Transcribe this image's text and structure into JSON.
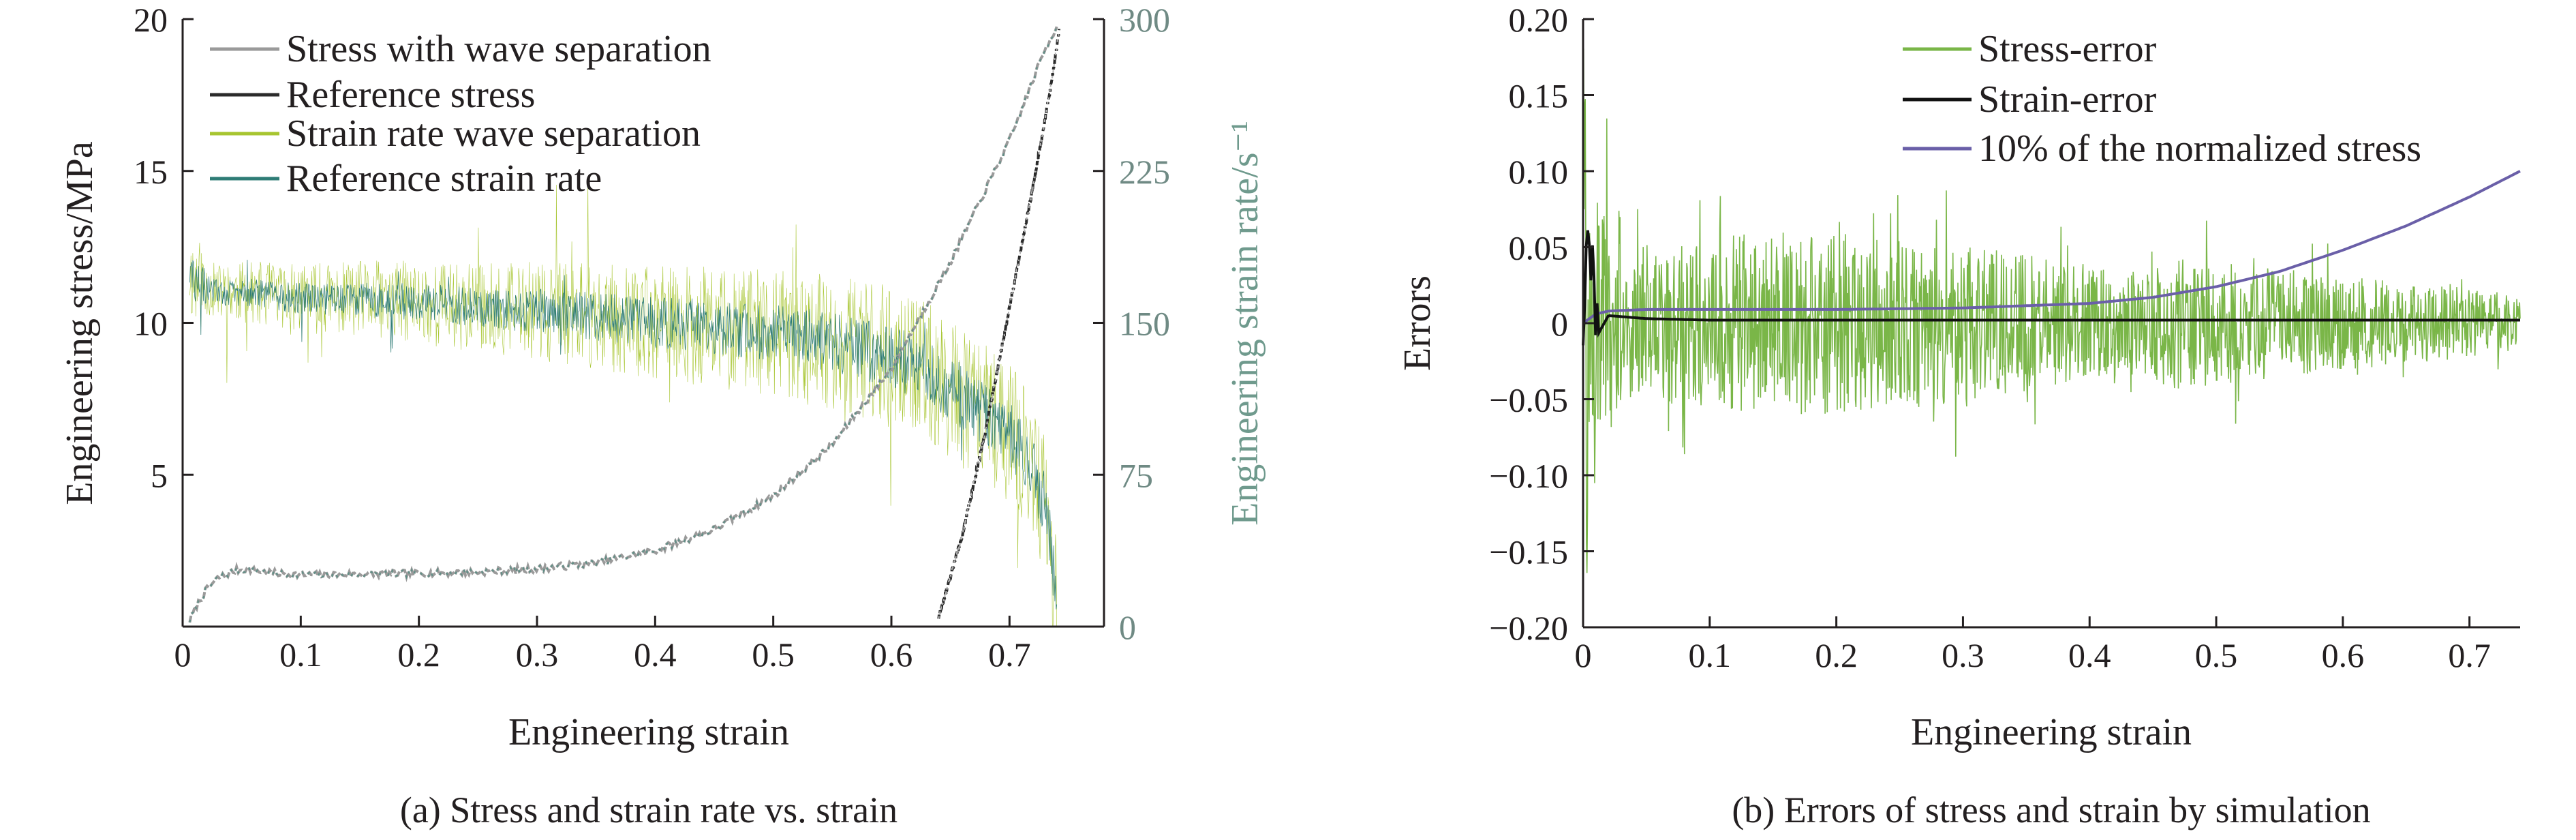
{
  "colors": {
    "green": "#7ab648",
    "yellow_green": "#a7c530",
    "teal": "#2e7c76",
    "dark": "#2b2b2b",
    "grey": "#9a9a9a",
    "purple": "#6a5fa8",
    "black": "#111111"
  },
  "chart_data": [
    {
      "type": "line",
      "caption": "(a) Stress and strain rate vs. strain",
      "xlabel": "Engineering strain",
      "ylabel": "Engineering stress/MPa",
      "ylabel_right": "Engineering strain rate/s⁻¹",
      "xlim": [
        0,
        0.78
      ],
      "ylim": [
        0,
        20
      ],
      "ylim_right": [
        0,
        300
      ],
      "x_ticks": [
        {
          "v": 0,
          "label": "0"
        },
        {
          "v": 0.1,
          "label": "0.1"
        },
        {
          "v": 0.2,
          "label": "0.2"
        },
        {
          "v": 0.3,
          "label": "0.3"
        },
        {
          "v": 0.4,
          "label": "0.4"
        },
        {
          "v": 0.5,
          "label": "0.5"
        },
        {
          "v": 0.6,
          "label": "0.6"
        },
        {
          "v": 0.7,
          "label": "0.7"
        }
      ],
      "y_ticks": [
        {
          "v": 5,
          "label": "5"
        },
        {
          "v": 10,
          "label": "10"
        },
        {
          "v": 15,
          "label": "15"
        },
        {
          "v": 20,
          "label": "20"
        }
      ],
      "y_ticks_right": [
        {
          "v": 0,
          "label": "0"
        },
        {
          "v": 75,
          "label": "75"
        },
        {
          "v": 150,
          "label": "150"
        },
        {
          "v": 225,
          "label": "225"
        },
        {
          "v": 300,
          "label": "300"
        }
      ],
      "grid": false,
      "legend": "top-left",
      "series": [
        {
          "name": "Stress with wave separation",
          "axis": "left",
          "color": "#9a9a9a",
          "x": [
            0.006,
            0.012,
            0.02,
            0.03,
            0.045,
            0.055,
            0.06,
            0.08,
            0.1,
            0.15,
            0.2,
            0.25,
            0.3,
            0.35,
            0.4,
            0.45,
            0.5,
            0.55,
            0.6,
            0.65,
            0.7,
            0.73,
            0.738,
            0.74
          ],
          "y": [
            0.2,
            0.7,
            1.2,
            1.6,
            1.85,
            1.9,
            1.85,
            1.75,
            1.7,
            1.72,
            1.75,
            1.8,
            1.9,
            2.1,
            2.5,
            3.2,
            4.3,
            6.0,
            8.5,
            12.0,
            16.0,
            19.0,
            19.6,
            19.8
          ]
        },
        {
          "name": "Reference stress",
          "axis": "left",
          "color": "#2b2b2b",
          "x": [
            0.64,
            0.66,
            0.68,
            0.7,
            0.72,
            0.735,
            0.742
          ],
          "y": [
            0.3,
            3.0,
            6.5,
            10.5,
            14.5,
            17.8,
            19.6
          ]
        },
        {
          "name": "Strain rate wave separation",
          "axis": "right",
          "color": "#a7c530",
          "x": [
            0.006,
            0.01,
            0.03,
            0.06,
            0.1,
            0.15,
            0.2,
            0.25,
            0.3,
            0.35,
            0.4,
            0.45,
            0.5,
            0.55,
            0.6,
            0.62,
            0.65,
            0.68,
            0.7,
            0.72,
            0.73,
            0.735,
            0.74
          ],
          "y": [
            175,
            170,
            165,
            165,
            162,
            162,
            160,
            158,
            156,
            153,
            150,
            148,
            145,
            140,
            133,
            128,
            118,
            105,
            95,
            78,
            60,
            40,
            8
          ]
        },
        {
          "name": "Reference strain rate",
          "axis": "right",
          "color": "#2e7c76",
          "x": [
            0.006,
            0.01,
            0.03,
            0.06,
            0.1,
            0.15,
            0.2,
            0.25,
            0.3,
            0.35,
            0.4,
            0.45,
            0.5,
            0.55,
            0.6,
            0.62,
            0.65,
            0.68,
            0.7,
            0.72,
            0.73,
            0.735,
            0.74
          ],
          "y": [
            175,
            170,
            165,
            165,
            162,
            162,
            160,
            158,
            156,
            153,
            150,
            148,
            145,
            140,
            133,
            128,
            118,
            105,
            95,
            78,
            60,
            40,
            8
          ]
        }
      ]
    },
    {
      "type": "line",
      "caption": "(b) Errors of stress and strain by simulation",
      "xlabel": "Engineering strain",
      "ylabel": "Errors",
      "xlim": [
        0,
        0.74
      ],
      "ylim": [
        -0.2,
        0.2
      ],
      "x_ticks": [
        {
          "v": 0,
          "label": "0"
        },
        {
          "v": 0.1,
          "label": "0.1"
        },
        {
          "v": 0.2,
          "label": "0.2"
        },
        {
          "v": 0.3,
          "label": "0.3"
        },
        {
          "v": 0.4,
          "label": "0.4"
        },
        {
          "v": 0.5,
          "label": "0.5"
        },
        {
          "v": 0.6,
          "label": "0.6"
        },
        {
          "v": 0.7,
          "label": "0.7"
        }
      ],
      "y_ticks": [
        {
          "v": -0.2,
          "label": "−0.20"
        },
        {
          "v": -0.15,
          "label": "−0.15"
        },
        {
          "v": -0.1,
          "label": "−0.10"
        },
        {
          "v": -0.05,
          "label": "−0.05"
        },
        {
          "v": 0,
          "label": "0"
        },
        {
          "v": 0.05,
          "label": "0.05"
        },
        {
          "v": 0.1,
          "label": "0.10"
        },
        {
          "v": 0.15,
          "label": "0.15"
        },
        {
          "v": 0.2,
          "label": "0.20"
        }
      ],
      "grid": false,
      "legend": "top-right",
      "series": [
        {
          "name": "Stress-error",
          "color": "#7ab648",
          "x": [
            0.0,
            0.1,
            0.2,
            0.3,
            0.4,
            0.5,
            0.6,
            0.7,
            0.74
          ],
          "y": [
            0.0,
            0.0,
            0.0,
            0.0,
            0.0,
            0.0,
            0.0,
            0.0,
            0.0
          ]
        },
        {
          "name": "Strain-error",
          "color": "#111111",
          "x": [
            0.0,
            0.005,
            0.01,
            0.02,
            0.05,
            0.1,
            0.2,
            0.3,
            0.4,
            0.5,
            0.6,
            0.7,
            0.74
          ],
          "y": [
            0.0,
            0.06,
            -0.01,
            0.005,
            0.003,
            0.002,
            0.002,
            0.002,
            0.002,
            0.002,
            0.002,
            0.002,
            0.002
          ]
        },
        {
          "name": "10% of the normalized stress",
          "color": "#6a5fa8",
          "x": [
            0.0,
            0.01,
            0.02,
            0.05,
            0.1,
            0.2,
            0.3,
            0.4,
            0.45,
            0.5,
            0.55,
            0.6,
            0.65,
            0.7,
            0.74
          ],
          "y": [
            0.0,
            0.006,
            0.008,
            0.009,
            0.009,
            0.009,
            0.01,
            0.013,
            0.017,
            0.024,
            0.034,
            0.048,
            0.064,
            0.083,
            0.1
          ]
        }
      ]
    }
  ]
}
